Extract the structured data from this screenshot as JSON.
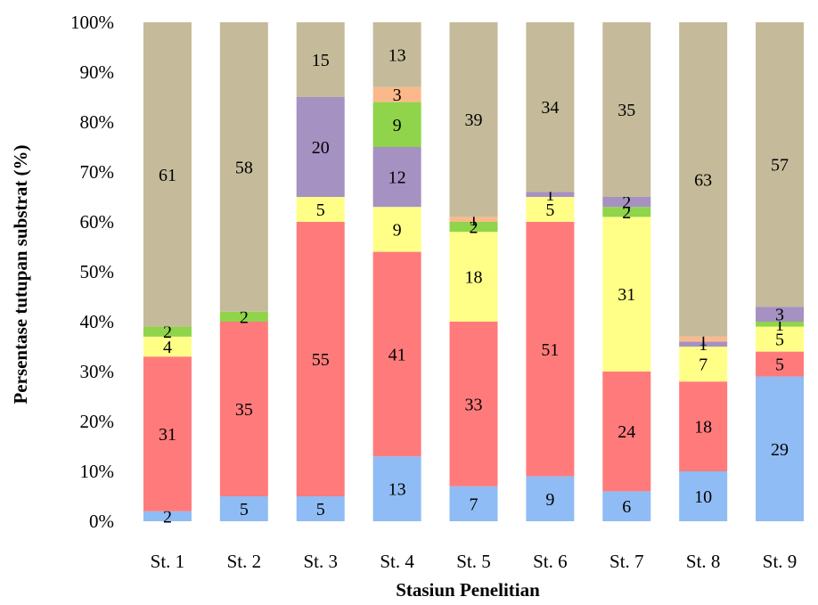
{
  "chart_data": {
    "type": "bar",
    "stacked": true,
    "percent_stacked": true,
    "title": "",
    "xlabel": "Stasiun Penelitian",
    "ylabel": "Persentase tutupan substrat (%)",
    "ylim": [
      0,
      100
    ],
    "y_ticks": [
      "0%",
      "10%",
      "20%",
      "30%",
      "40%",
      "50%",
      "60%",
      "70%",
      "80%",
      "90%",
      "100%"
    ],
    "grid": false,
    "legend": "none",
    "categories": [
      "St. 1",
      "St. 2",
      "St. 3",
      "St. 4",
      "St. 5",
      "St. 6",
      "St. 7",
      "St. 8",
      "St. 9"
    ],
    "series": [
      {
        "color": "#8fbcf4",
        "values": [
          2,
          5,
          5,
          13,
          7,
          9,
          6,
          10,
          29
        ]
      },
      {
        "color": "#ff7b7b",
        "values": [
          31,
          35,
          55,
          41,
          33,
          51,
          24,
          18,
          5
        ]
      },
      {
        "color": "#ffff88",
        "values": [
          4,
          0,
          5,
          9,
          18,
          5,
          31,
          7,
          5
        ]
      },
      {
        "color": "#8fd44a",
        "values": [
          2,
          2,
          0,
          0,
          2,
          0,
          2,
          0,
          1
        ]
      },
      {
        "color": "#a591c2",
        "values": [
          0,
          0,
          20,
          12,
          0,
          1,
          2,
          1,
          3
        ]
      },
      {
        "color": "#8fd44a",
        "values": [
          0,
          0,
          0,
          9,
          0,
          0,
          0,
          0,
          0
        ]
      },
      {
        "color": "#fbb98b",
        "values": [
          0,
          0,
          0,
          3,
          1,
          0,
          0,
          1,
          0
        ]
      },
      {
        "color": "#c5bb9a",
        "values": [
          61,
          58,
          15,
          13,
          39,
          34,
          35,
          63,
          57
        ]
      }
    ]
  }
}
